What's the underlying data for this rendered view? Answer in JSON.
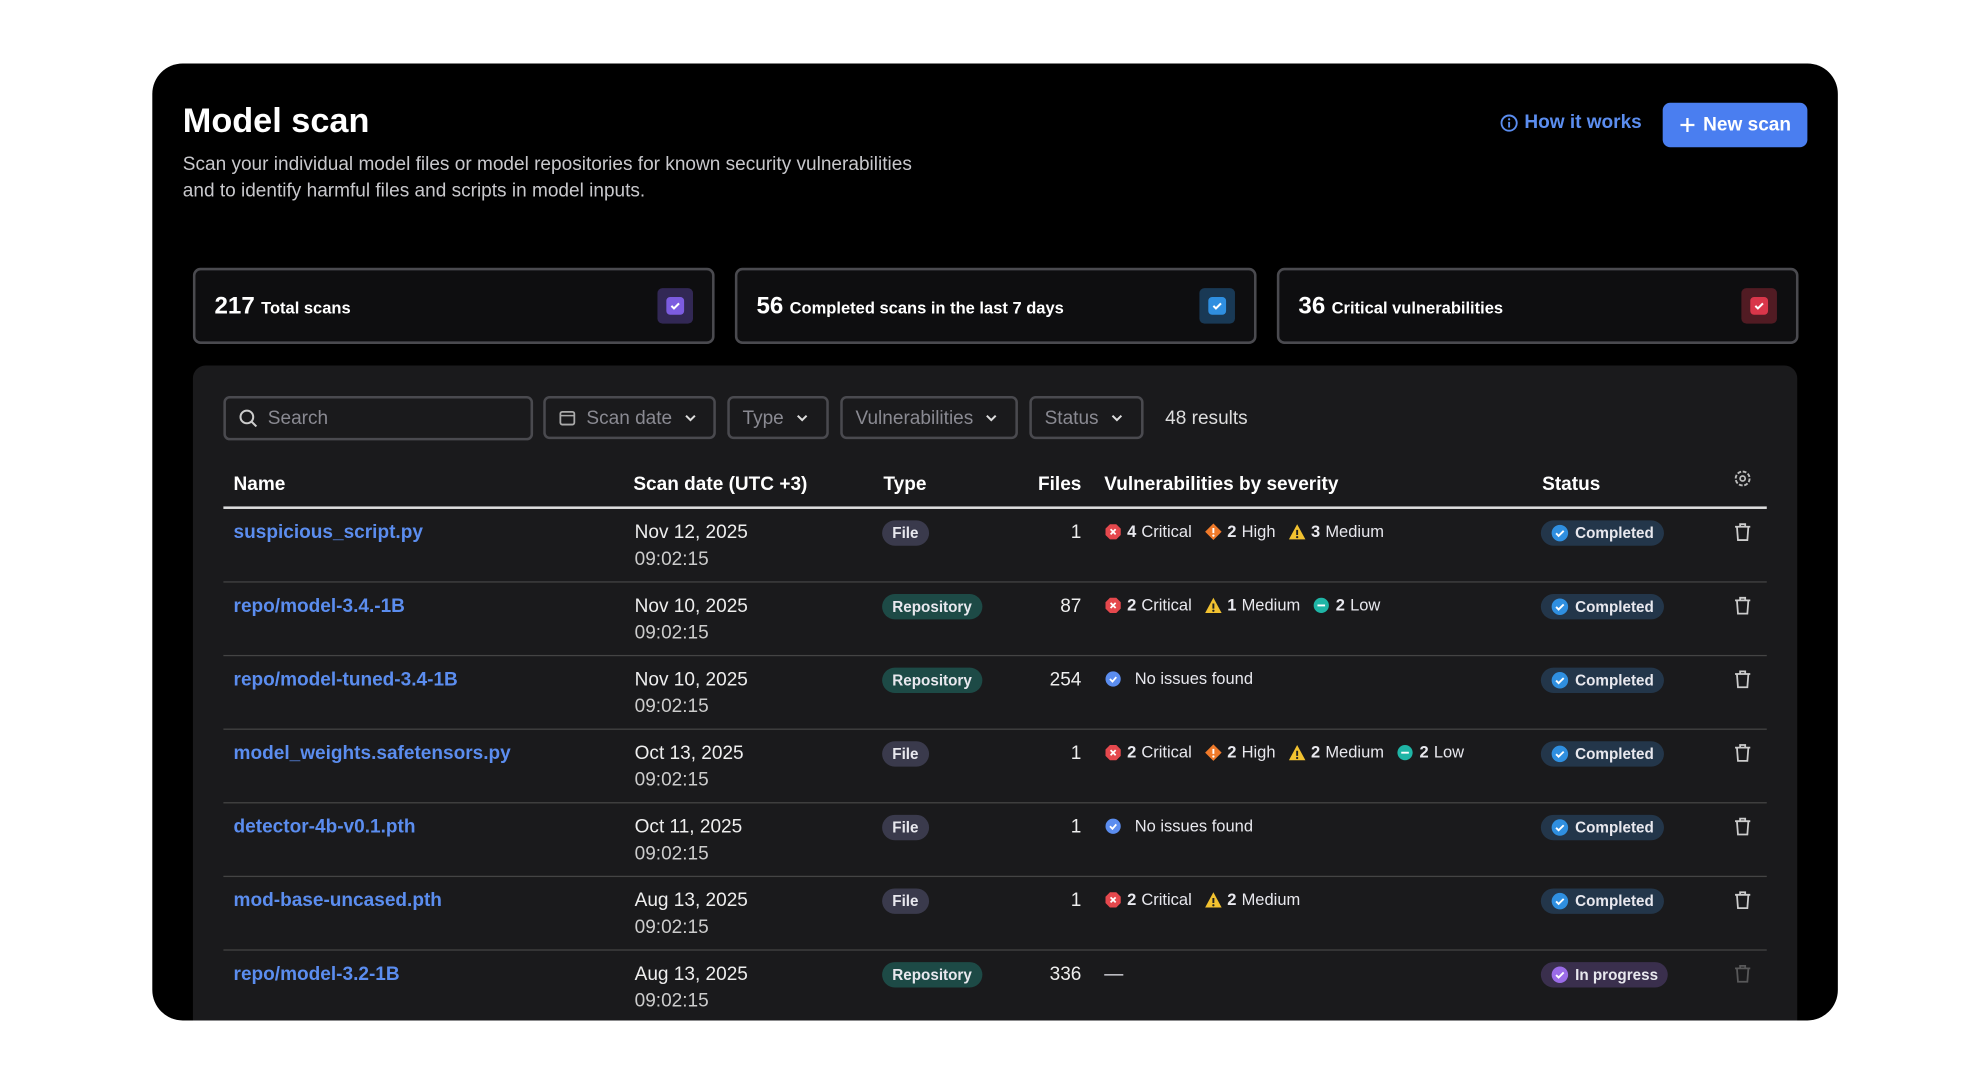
{
  "header": {
    "title": "Model scan",
    "description_lines": [
      "Scan your individual model files or model repositories for known security vulnerabilities",
      "and to identify harmful files and scripts in model inputs."
    ],
    "how_it_works": "How it works",
    "new_scan": "New scan"
  },
  "stats": [
    {
      "value": 217,
      "label": "Total scans",
      "color": "#7c5ce0"
    },
    {
      "value": 56,
      "label": "Completed scans in the last 7 days",
      "color": "#2f8fe0"
    },
    {
      "value": 36,
      "label": "Critical vulnerabilities",
      "color": "#d9364a"
    }
  ],
  "filters": {
    "search": "Search",
    "dropdowns": [
      "Scan date",
      "Type",
      "Vulnerabilities",
      "Status"
    ],
    "results": "48 results"
  },
  "table": {
    "columns": [
      "Name",
      "Scan date (UTC +3)",
      "Type",
      "Files",
      "Vulnerabilities by severity",
      "Status"
    ],
    "rows": [
      {
        "name": "suspicious_script.py",
        "date": "Nov 12, 2025",
        "time": "09:02:15",
        "type": "File",
        "files": 1,
        "vulnerabilities": [
          {
            "count": 4,
            "label": "Critical"
          },
          {
            "count": 2,
            "label": "High"
          },
          {
            "count": 3,
            "label": "Medium"
          }
        ],
        "status": "Completed"
      },
      {
        "name": "repo/model-3.4.-1B",
        "date": "Nov 10, 2025",
        "time": "09:02:15",
        "type": "Repository",
        "files": 87,
        "vulnerabilities": [
          {
            "count": 2,
            "label": "Critical"
          },
          {
            "count": 1,
            "label": "Medium"
          },
          {
            "count": 2,
            "label": "Low"
          }
        ],
        "status": "Completed"
      },
      {
        "name": "repo/model-tuned-3.4-1B",
        "date": "Nov 10, 2025",
        "time": "09:02:15",
        "type": "Repository",
        "files": 254,
        "vulnerabilities": "No issues found",
        "status": "Completed"
      },
      {
        "name": "model_weights.safetensors.py",
        "date": "Oct 13, 2025",
        "time": "09:02:15",
        "type": "File",
        "files": 1,
        "vulnerabilities": [
          {
            "count": 2,
            "label": "Critical"
          },
          {
            "count": 2,
            "label": "High"
          },
          {
            "count": 2,
            "label": "Medium"
          },
          {
            "count": 2,
            "label": "Low"
          }
        ],
        "status": "Completed"
      },
      {
        "name": "detector-4b-v0.1.pth",
        "date": "Oct 11, 2025",
        "time": "09:02:15",
        "type": "File",
        "files": 1,
        "vulnerabilities": "No issues found",
        "status": "Completed"
      },
      {
        "name": "mod-base-uncased.pth",
        "date": "Aug 13, 2025",
        "time": "09:02:15",
        "type": "File",
        "files": 1,
        "vulnerabilities": [
          {
            "count": 2,
            "label": "Critical"
          },
          {
            "count": 2,
            "label": "Medium"
          }
        ],
        "status": "Completed"
      },
      {
        "name": "repo/model-3.2-1B",
        "date": "Aug 13, 2025",
        "time": "09:02:15",
        "type": "Repository",
        "files": 336,
        "vulnerabilities": "—",
        "status": "In progress"
      }
    ]
  },
  "type_styles": {
    "File": "#3a3a4c",
    "Repository": "#1d4a46"
  },
  "severity_styles": {
    "Critical": {
      "color": "#e5484d",
      "shape": "octagon"
    },
    "High": {
      "color": "#f07a2a",
      "shape": "diamond"
    },
    "Medium": {
      "color": "#f2c230",
      "shape": "triangle"
    },
    "Low": {
      "color": "#1fb5a6",
      "shape": "circle"
    }
  },
  "note_styles": {
    "No issues found": {
      "color": "#5b8def"
    }
  },
  "status_styles": {
    "Completed": {
      "bg": "#23364a",
      "icon": "#2f8fe0",
      "trash": 1
    },
    "In progress": {
      "bg": "#3a2f4d",
      "icon": "#9b6ce8",
      "trash": 0.35
    }
  }
}
